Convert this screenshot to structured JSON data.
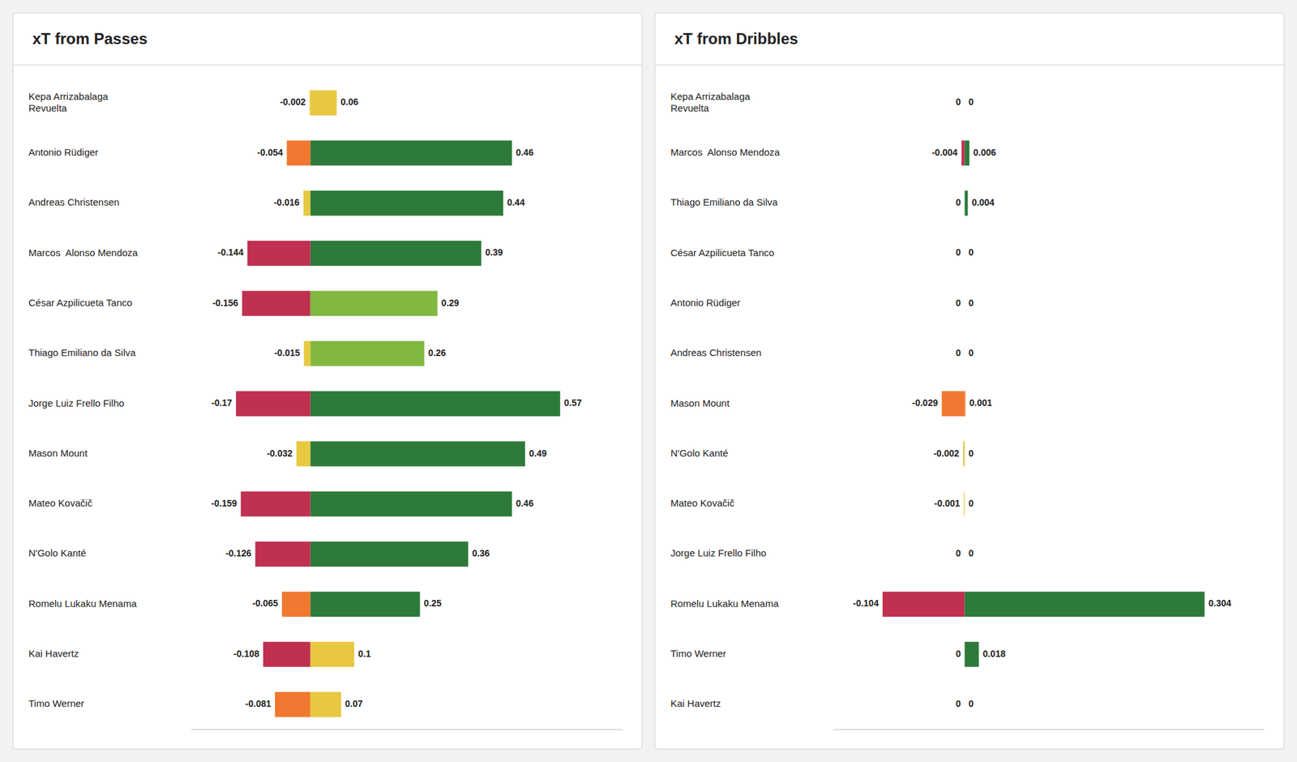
{
  "chart_data": [
    {
      "type": "bar",
      "orientation": "horizontal",
      "title": "xT from Passes",
      "categories": [
        "Kepa Arrizabalaga\nRevuelta",
        "Antonio Rüdiger",
        "Andreas Christensen",
        "Marcos  Alonso Mendoza",
        "César Azpilicueta Tanco",
        "Thiago Emiliano da Silva",
        "Jorge Luiz Frello Filho",
        "Mason Mount",
        "Mateo Kovačič",
        "N'Golo Kanté",
        "Romelu Lukaku Menama",
        "Kai Havertz",
        "Timo Werner"
      ],
      "series": [
        {
          "values": [
            -0.002,
            -0.054,
            -0.016,
            -0.144,
            -0.156,
            -0.015,
            -0.17,
            -0.032,
            -0.159,
            -0.126,
            -0.065,
            -0.108,
            -0.081
          ],
          "colors": [
            "#e8c840",
            "#f07830",
            "#e8c840",
            "#c03050",
            "#c03050",
            "#e8c840",
            "#c03050",
            "#e8c840",
            "#c03050",
            "#c03050",
            "#f07830",
            "#c03050",
            "#f07830"
          ]
        },
        {
          "values": [
            0.06,
            0.46,
            0.44,
            0.39,
            0.29,
            0.26,
            0.57,
            0.49,
            0.46,
            0.36,
            0.25,
            0.1,
            0.07
          ],
          "colors": [
            "#e8c840",
            "#2d7a3a",
            "#2d7a3a",
            "#2d7a3a",
            "#80b840",
            "#80b840",
            "#2d7a3a",
            "#2d7a3a",
            "#2d7a3a",
            "#2d7a3a",
            "#2d7a3a",
            "#e8c840",
            "#e8c840"
          ]
        }
      ],
      "xlim": [
        -0.272,
        0.7125
      ],
      "data_labels": true,
      "tick_labels": false,
      "grid": false
    },
    {
      "type": "bar",
      "orientation": "horizontal",
      "title": "xT from Dribbles",
      "categories": [
        "Kepa Arrizabalaga\nRevuelta",
        "Marcos  Alonso Mendoza",
        "Thiago Emiliano da Silva",
        "César Azpilicueta Tanco",
        "Antonio Rüdiger",
        "Andreas Christensen",
        "Mason Mount",
        "N'Golo Kanté",
        "Mateo Kovačič",
        "Jorge Luiz Frello Filho",
        "Romelu Lukaku Menama",
        "Timo Werner",
        "Kai Havertz"
      ],
      "series": [
        {
          "values": [
            0,
            -0.004,
            0,
            0,
            0,
            0,
            -0.029,
            -0.002,
            -0.001,
            0,
            -0.104,
            0,
            0
          ],
          "colors": [
            "#e8c840",
            "#c03050",
            "#e8c840",
            "#e8c840",
            "#e8c840",
            "#e8c840",
            "#f07830",
            "#e8c840",
            "#e8c840",
            "#e8c840",
            "#c03050",
            "#e8c840",
            "#e8c840"
          ]
        },
        {
          "values": [
            0,
            0.006,
            0.004,
            0,
            0,
            0,
            0.001,
            0,
            0,
            0,
            0.304,
            0.018,
            0
          ],
          "colors": [
            "#e8c840",
            "#2d7a3a",
            "#2d7a3a",
            "#e8c840",
            "#e8c840",
            "#e8c840",
            "#f07830",
            "#e8c840",
            "#e8c840",
            "#e8c840",
            "#2d7a3a",
            "#2d7a3a",
            "#e8c840"
          ]
        }
      ],
      "xlim": [
        -0.1664,
        0.38
      ],
      "data_labels": true,
      "tick_labels": false,
      "grid": false
    }
  ]
}
